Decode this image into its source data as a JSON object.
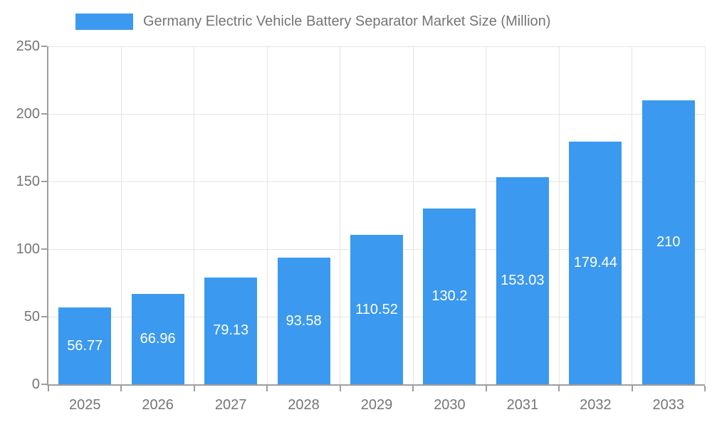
{
  "legend": {
    "label": "Germany Electric Vehicle Battery Separator Market Size (Million)"
  },
  "chart_data": {
    "type": "bar",
    "title": "Germany Electric Vehicle Battery Separator Market Size (Million)",
    "categories": [
      "2025",
      "2026",
      "2027",
      "2028",
      "2029",
      "2030",
      "2031",
      "2032",
      "2033"
    ],
    "values": [
      56.77,
      66.96,
      79.13,
      93.58,
      110.52,
      130.2,
      153.03,
      179.44,
      210
    ],
    "value_labels": [
      "56.77",
      "66.96",
      "79.13",
      "93.58",
      "110.52",
      "130.2",
      "153.03",
      "179.44",
      "210"
    ],
    "xlabel": "",
    "ylabel": "",
    "ylim": [
      0,
      250
    ],
    "yticks": [
      0,
      50,
      100,
      150,
      200,
      250
    ],
    "grid": true,
    "legend_position": "top-left",
    "colors": {
      "bar": "#3B99EF",
      "bar_label": "#ffffff",
      "axis_line": "#9e9e9e",
      "grid_line": "#e4e4e4",
      "axis_text": "#757575"
    }
  }
}
